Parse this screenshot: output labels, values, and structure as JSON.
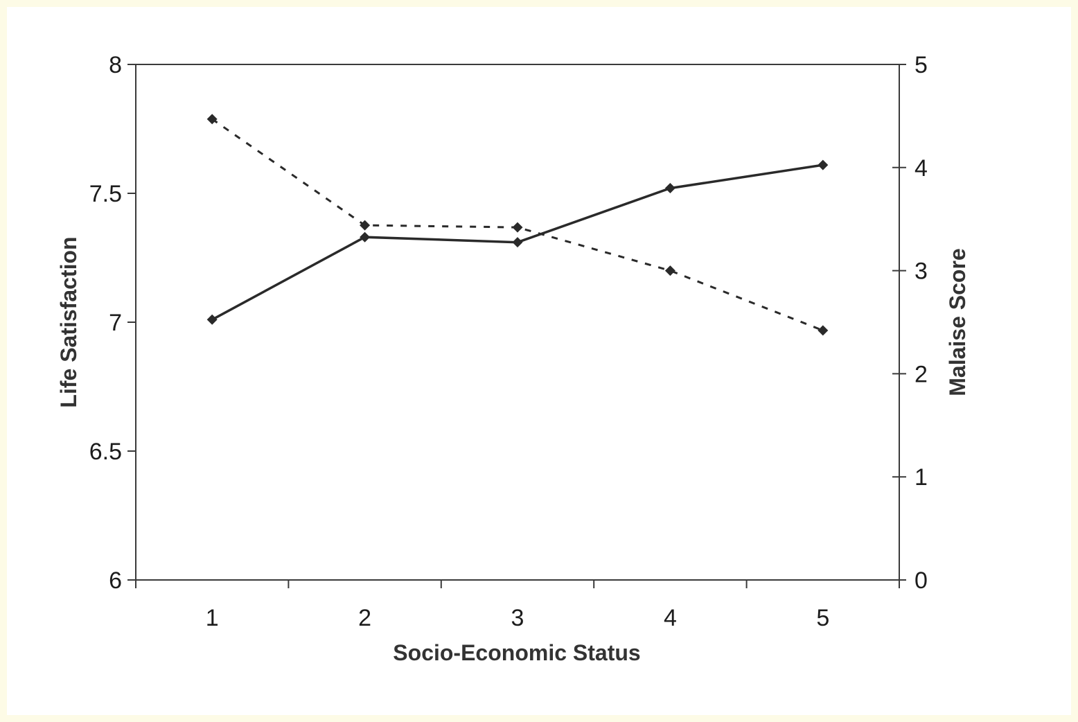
{
  "chart_data": {
    "type": "line",
    "xlabel": "Socio-Economic Status",
    "ylabel_left": "Life Satisfaction",
    "ylabel_right": "Malaise Score",
    "x": [
      1,
      2,
      3,
      4,
      5
    ],
    "x_ticks": [
      "1",
      "2",
      "3",
      "4",
      "5"
    ],
    "ylim_left": [
      6,
      8
    ],
    "y_ticks_left": [
      "6",
      "6.5",
      "7",
      "7.5",
      "8"
    ],
    "ylim_right": [
      0,
      5
    ],
    "y_ticks_right": [
      "0",
      "1",
      "2",
      "3",
      "4",
      "5"
    ],
    "grid": false,
    "legend": "none",
    "series": [
      {
        "axis": "left",
        "style": "solid",
        "marker": "diamond",
        "values": [
          7.01,
          7.33,
          7.31,
          7.52,
          7.61
        ]
      },
      {
        "axis": "right",
        "style": "dashed",
        "marker": "diamond",
        "values": [
          4.47,
          3.44,
          3.42,
          3.0,
          2.42
        ]
      }
    ],
    "colors": {
      "line": "#2a2a2a",
      "axis": "#3a3a3a",
      "background": "#fdfbe6"
    }
  }
}
